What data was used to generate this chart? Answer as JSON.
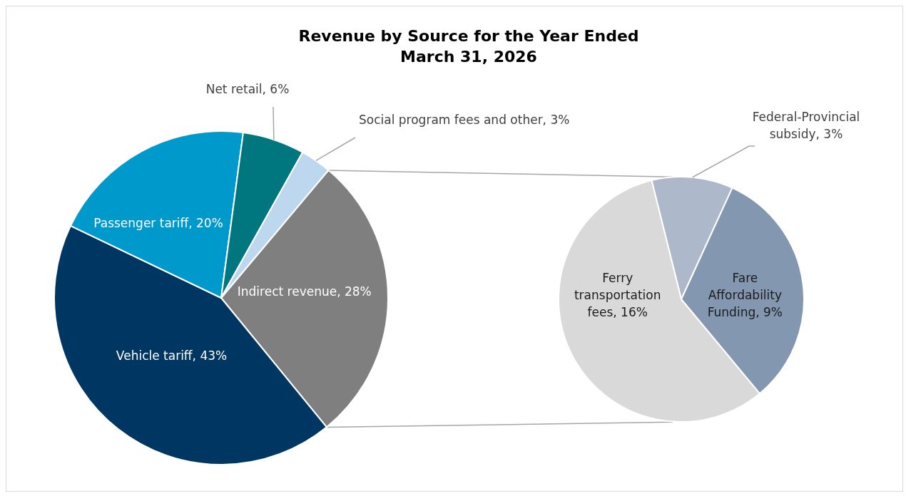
{
  "chart_data": [
    {
      "type": "pie",
      "title": "Revenue by Source for the Year Ended\nMarch 31, 2026",
      "categories": [
        "Indirect revenue",
        "Vehicle tariff",
        "Passenger tariff",
        "Net retail",
        "Social program fees and other"
      ],
      "values": [
        28,
        43,
        20,
        6,
        3
      ],
      "colors": [
        "#7f7f7f",
        "#003662",
        "#0099cc",
        "#00777f",
        "#bdd7ee"
      ],
      "value_labels": [
        "28%",
        "43%",
        "20%",
        "6%",
        "3%"
      ]
    },
    {
      "type": "pie",
      "categories": [
        "Federal-Provincial subsidy",
        "Fare Affordability Funding",
        "Ferry transportation fees"
      ],
      "values": [
        3,
        9,
        16
      ],
      "colors": [
        "#adb9ca",
        "#8497b0",
        "#d9d9d9"
      ],
      "value_labels": [
        "3%",
        "9%",
        "16%"
      ]
    }
  ]
}
